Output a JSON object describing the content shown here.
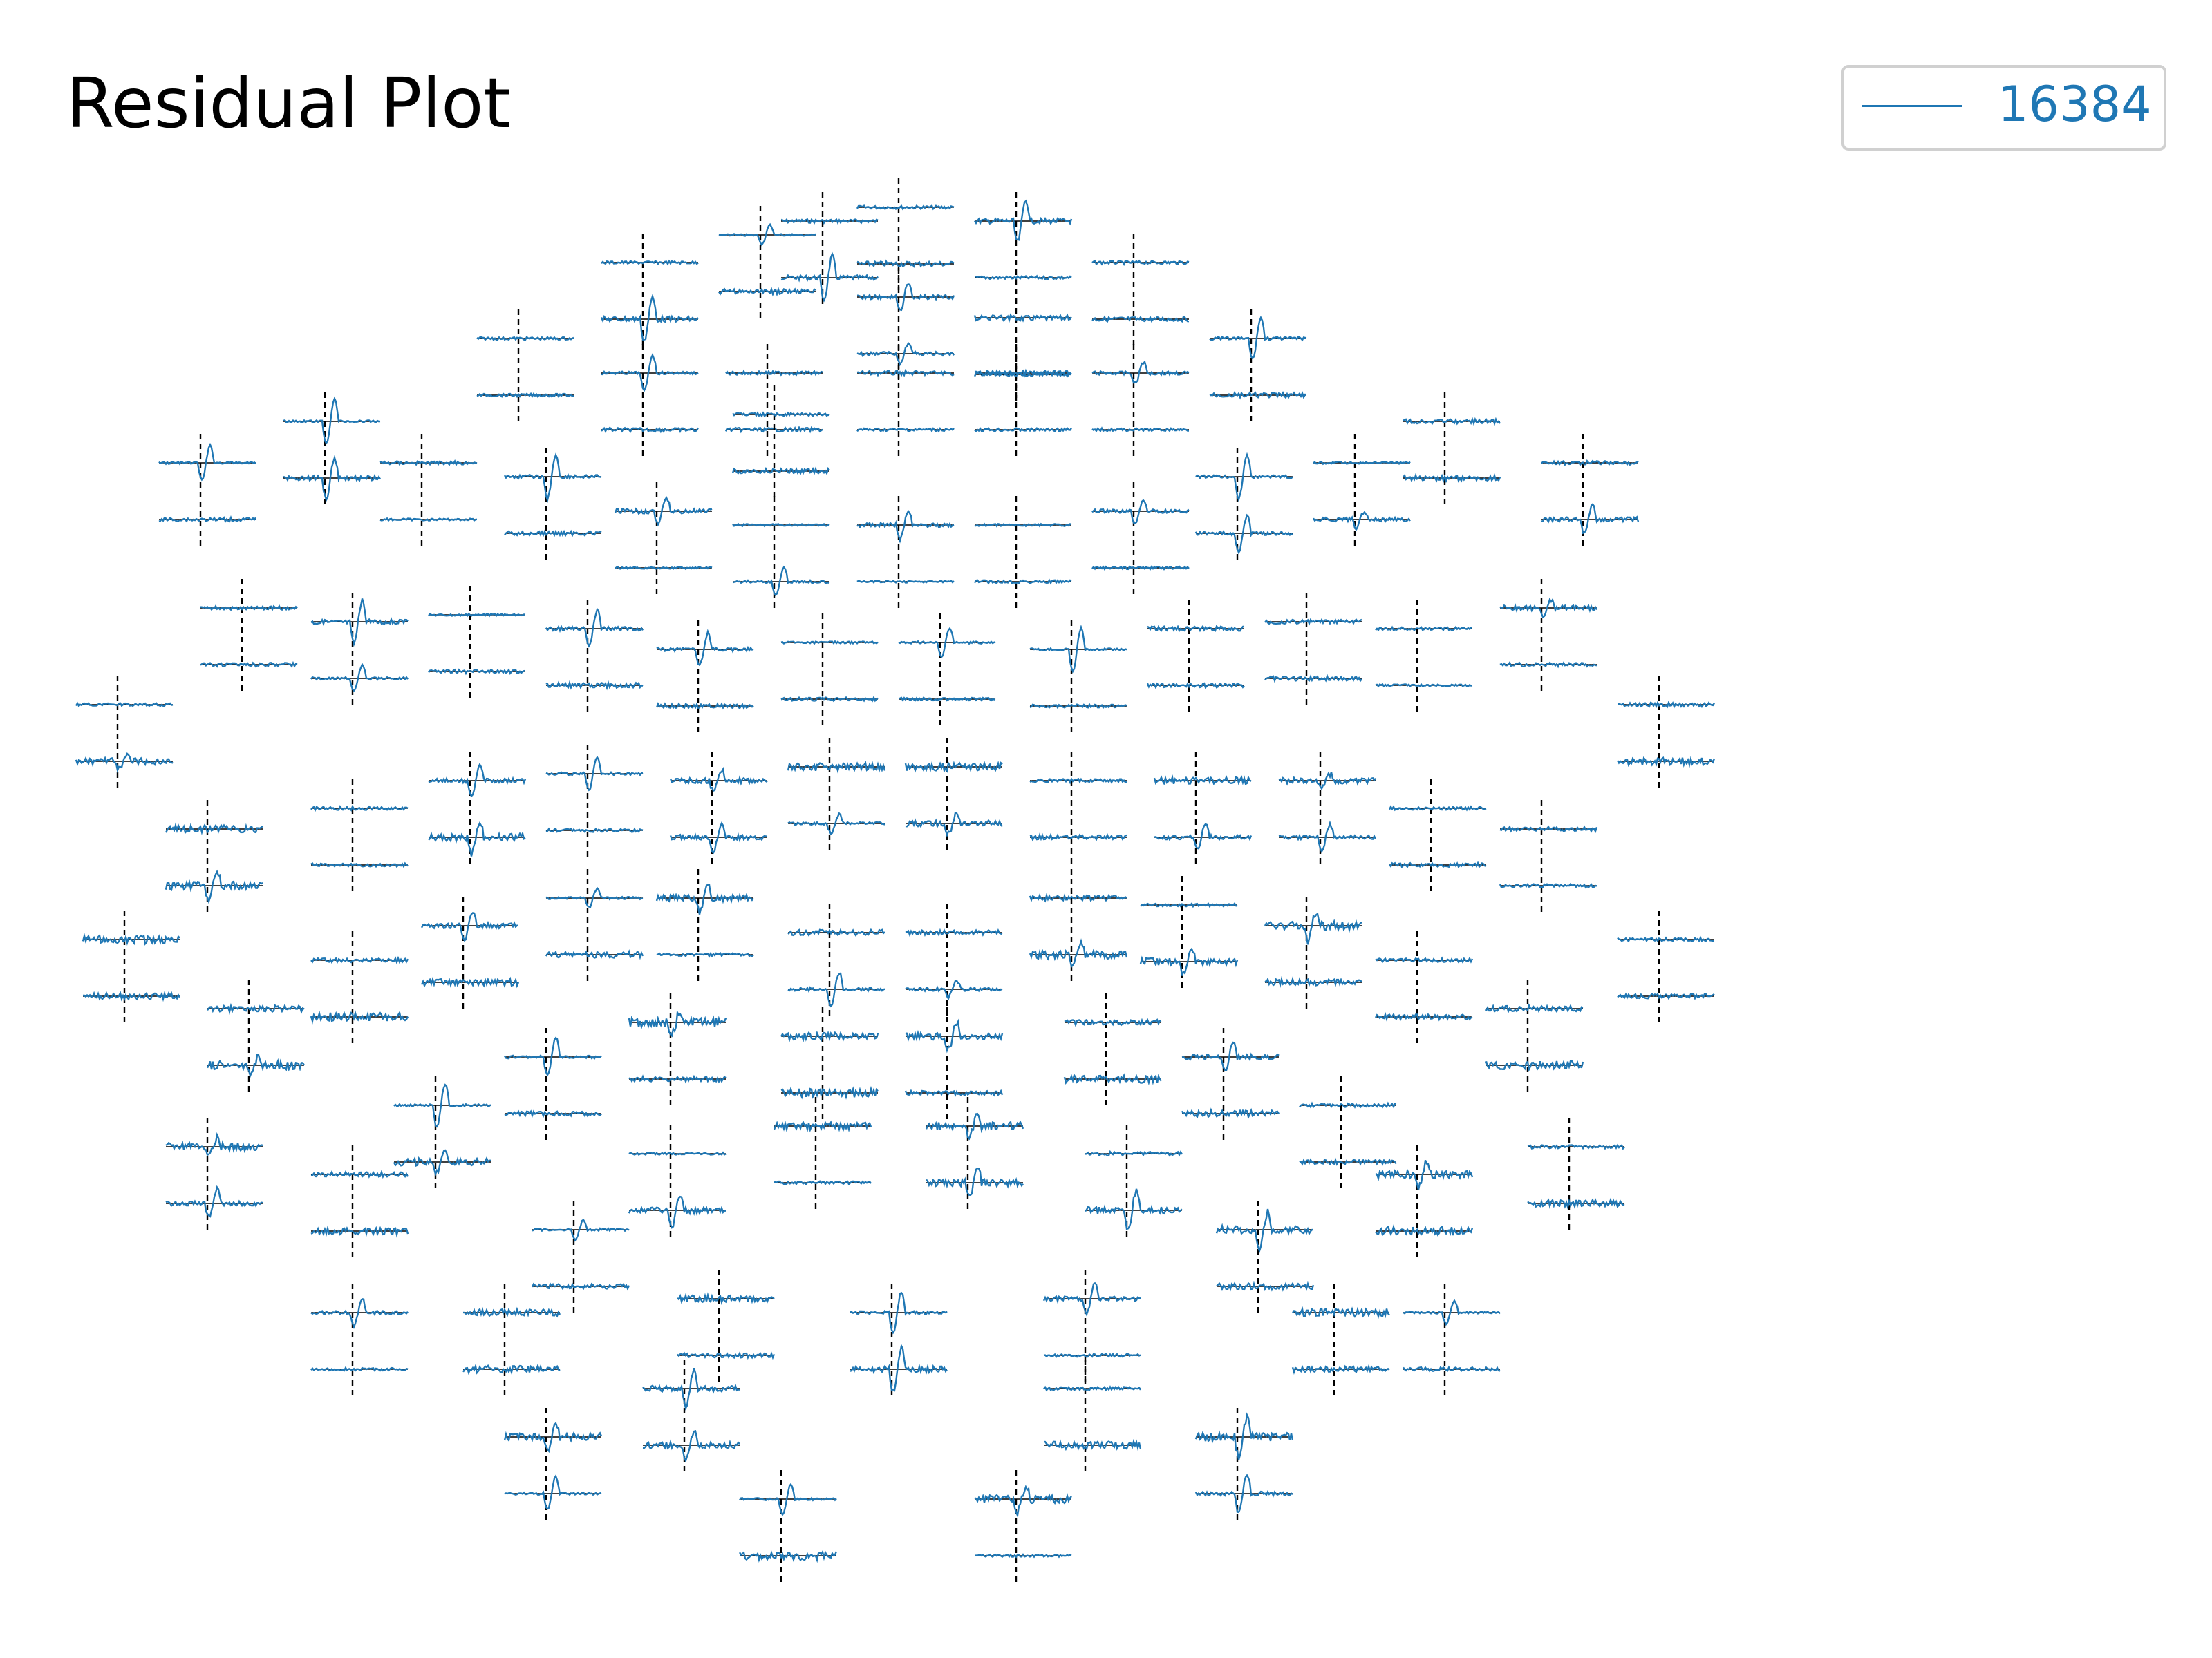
{
  "title": "Residual Plot",
  "legend": {
    "label": "16384",
    "color": "#1f77b4"
  },
  "chart_data": {
    "type": "line",
    "title": "Residual Plot",
    "description_of_content": "",
    "series": [
      {
        "name": "16384",
        "color": "#1f77b4"
      }
    ],
    "small_multiples": true,
    "panels_per_channel": 2,
    "zero_line_color": "#000000",
    "event_marker": "dashed vertical line at t=0",
    "grid": false,
    "legend_position": "top-right"
  }
}
